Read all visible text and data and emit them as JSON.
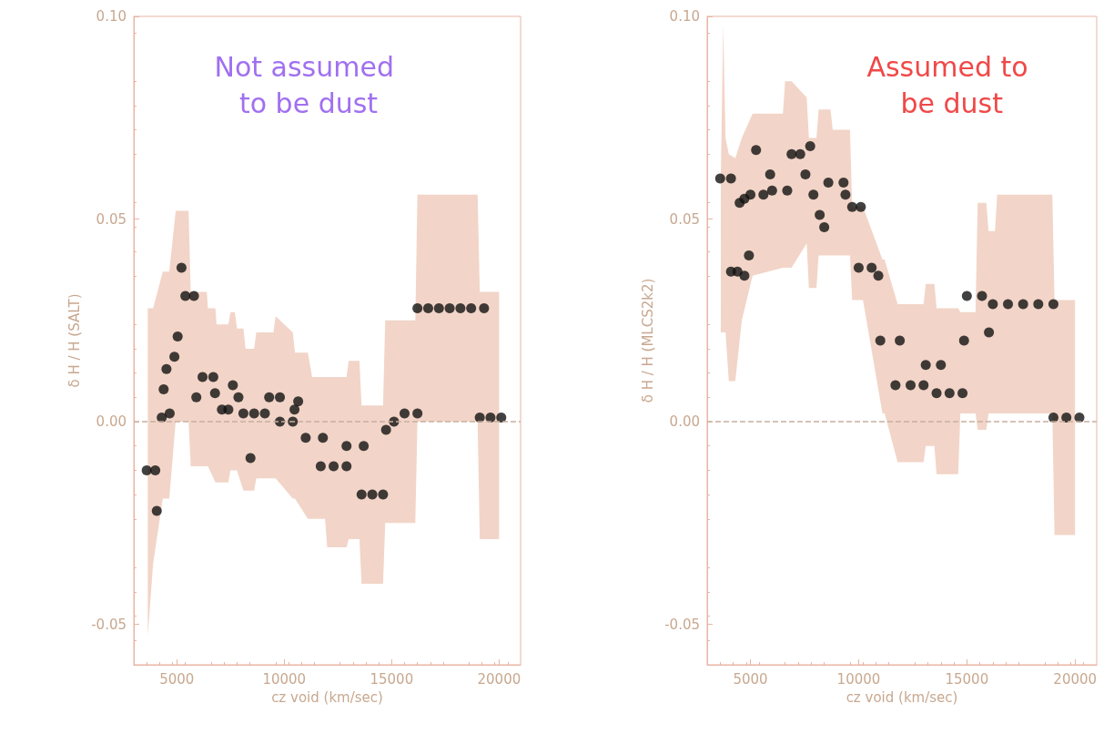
{
  "chart_data": [
    {
      "type": "scatter",
      "title": "Not assumed to be dust",
      "xlabel": "cz void (km/sec)",
      "ylabel": "δ H / H (SALT)",
      "xlim": [
        3000,
        21000
      ],
      "xticks": [
        5000,
        10000,
        15000,
        20000
      ],
      "ylim": [
        -0.06,
        0.1
      ],
      "yticks": [
        {
          "value": -0.05,
          "label": "-0.05"
        },
        {
          "value": 0,
          "label": "0.00"
        },
        {
          "value": 0.05,
          "label": "0.05"
        },
        {
          "value": 0.1,
          "label": "0.10"
        }
      ],
      "grid": false,
      "marker": "circle",
      "ref_lines": [
        {
          "axis": "y",
          "value": 0,
          "line_style": "dashed",
          "color": "#c8b0a0"
        }
      ],
      "series": [
        {
          "type": "area",
          "color": "#f2d5c8",
          "values": [
            null,
            null,
            null,
            null,
            null,
            null,
            null,
            null,
            null,
            null,
            null,
            null,
            null,
            null,
            null,
            null,
            null,
            null,
            null,
            null,
            null,
            null,
            null,
            null,
            null,
            null,
            null,
            null,
            null,
            null,
            null,
            null,
            null,
            null,
            null,
            null,
            null,
            null
          ],
          "x": [
            3650,
            3900,
            4350,
            4650,
            4950,
            5550,
            5650,
            6400,
            6450,
            6800,
            6850,
            7400,
            7500,
            7700,
            7800,
            8100,
            8200,
            8600,
            8700,
            9500,
            9600,
            10400,
            10500,
            11100,
            11300,
            11900,
            12000,
            12900,
            13000,
            13500,
            13600,
            14600,
            14700,
            16100,
            16200,
            19000,
            19100,
            20000
          ],
          "upper": [
            0.028,
            0.028,
            0.037,
            0.037,
            0.052,
            0.052,
            0.032,
            0.032,
            0.028,
            0.028,
            0.024,
            0.024,
            0.027,
            0.027,
            0.023,
            0.023,
            0.018,
            0.018,
            0.022,
            0.022,
            0.026,
            0.022,
            0.017,
            0.017,
            0.011,
            0.011,
            0.011,
            0.011,
            0.015,
            0.015,
            0.004,
            0.004,
            0.025,
            0.025,
            0.056,
            0.056,
            0.032,
            0.032
          ],
          "lower": [
            -0.053,
            -0.035,
            -0.019,
            -0.019,
            0.0,
            0.0,
            -0.011,
            -0.011,
            -0.011,
            -0.015,
            -0.015,
            -0.015,
            -0.012,
            -0.012,
            -0.012,
            -0.017,
            -0.017,
            -0.017,
            -0.014,
            -0.014,
            -0.014,
            -0.019,
            -0.019,
            -0.024,
            -0.024,
            -0.024,
            -0.031,
            -0.031,
            -0.029,
            -0.029,
            -0.04,
            -0.04,
            -0.025,
            -0.025,
            0.0,
            0.0,
            -0.029,
            -0.029
          ]
        },
        {
          "color": "#111111",
          "x": [
            3600,
            4000,
            4070,
            4300,
            4390,
            4520,
            4670,
            4890,
            5040,
            5220,
            5400,
            5800,
            5910,
            6200,
            6700,
            6780,
            7100,
            7400,
            7610,
            7870,
            8100,
            8600,
            9100,
            8430,
            9300,
            9800,
            9800,
            10400,
            10650,
            10480,
            11000,
            11800,
            11700,
            12300,
            12900,
            12900,
            13700,
            13600,
            14100,
            14600,
            14740,
            15110,
            15600,
            16200,
            16200,
            16700,
            17200,
            17700,
            18200,
            18700,
            19300,
            19100,
            19600,
            20100
          ],
          "values": [
            -0.012,
            -0.012,
            -0.022,
            0.001,
            0.008,
            0.013,
            0.002,
            0.016,
            0.021,
            0.038,
            0.031,
            0.031,
            0.006,
            0.011,
            0.011,
            0.007,
            0.003,
            0.003,
            0.009,
            0.006,
            0.002,
            0.002,
            0.002,
            -0.009,
            0.006,
            0.006,
            0.0,
            0.0,
            0.005,
            0.003,
            -0.004,
            -0.004,
            -0.011,
            -0.011,
            -0.011,
            -0.006,
            -0.006,
            -0.018,
            -0.018,
            -0.018,
            -0.002,
            0.0,
            0.002,
            0.002,
            0.028,
            0.028,
            0.028,
            0.028,
            0.028,
            0.028,
            0.028,
            0.001,
            0.001,
            0.001
          ]
        }
      ]
    },
    {
      "type": "scatter",
      "title": "Assumed to be dust",
      "xlabel": "cz void (km/sec)",
      "ylabel": "δ H / H (MLCS2k2)",
      "xlim": [
        3000,
        21000
      ],
      "xticks": [
        5000,
        10000,
        15000,
        20000
      ],
      "ylim": [
        -0.06,
        0.1
      ],
      "yticks": [
        {
          "value": -0.05,
          "label": "-0.05"
        },
        {
          "value": 0,
          "label": "0.00"
        },
        {
          "value": 0.05,
          "label": "0.05"
        },
        {
          "value": 0.1,
          "label": "0.10"
        }
      ],
      "grid": false,
      "marker": "circle",
      "ref_lines": [
        {
          "axis": "y",
          "value": 0,
          "line_style": "dashed",
          "color": "#c8b0a0"
        }
      ],
      "series": [
        {
          "type": "area",
          "color": "#f2d5c8",
          "values": [
            null,
            null,
            null,
            null,
            null,
            null,
            null,
            null,
            null,
            null,
            null,
            null,
            null,
            null,
            null,
            null,
            null,
            null,
            null,
            null,
            null,
            null,
            null,
            null,
            null,
            null,
            null,
            null,
            null,
            null,
            null,
            null,
            null,
            null,
            null,
            null,
            null,
            null,
            null
          ],
          "x": [
            3630,
            3740,
            3850,
            4000,
            4300,
            4600,
            5100,
            6500,
            6600,
            6900,
            7600,
            7700,
            8050,
            8150,
            8700,
            8800,
            9600,
            9700,
            10100,
            10200,
            11100,
            11200,
            11800,
            11900,
            13000,
            13100,
            13500,
            13600,
            14600,
            14700,
            15400,
            15500,
            15900,
            16000,
            16300,
            16400,
            18950,
            19050,
            20000
          ],
          "upper": [
            0.06,
            0.098,
            0.07,
            0.066,
            0.065,
            0.07,
            0.076,
            0.076,
            0.084,
            0.084,
            0.08,
            0.07,
            0.07,
            0.077,
            0.077,
            0.072,
            0.072,
            0.053,
            0.053,
            0.053,
            0.04,
            0.04,
            0.029,
            0.029,
            0.029,
            0.034,
            0.034,
            0.028,
            0.028,
            0.027,
            0.027,
            0.054,
            0.054,
            0.047,
            0.047,
            0.056,
            0.056,
            0.03,
            0.03
          ],
          "lower": [
            0.022,
            0.022,
            0.022,
            0.01,
            0.01,
            0.025,
            0.036,
            0.038,
            0.038,
            0.038,
            0.044,
            0.033,
            0.033,
            0.041,
            0.041,
            0.041,
            0.041,
            0.03,
            0.03,
            0.03,
            0.002,
            0.002,
            -0.01,
            -0.01,
            -0.01,
            -0.006,
            -0.006,
            -0.013,
            -0.013,
            0.002,
            0.002,
            -0.002,
            -0.002,
            0.002,
            0.002,
            0.002,
            0.002,
            -0.028,
            -0.028
          ]
        },
        {
          "color": "#111111",
          "x": [
            3600,
            4100,
            4100,
            4400,
            4930,
            4720,
            4500,
            4720,
            5260,
            5000,
            5600,
            5910,
            6000,
            6700,
            6900,
            7300,
            7760,
            7540,
            7910,
            8200,
            8410,
            8600,
            9300,
            9390,
            9700,
            10100,
            10000,
            10600,
            10910,
            11000,
            11900,
            11700,
            12400,
            13000,
            13100,
            13800,
            13600,
            14200,
            14800,
            14870,
            15000,
            15700,
            16020,
            16200,
            16900,
            17600,
            18300,
            19000,
            19000,
            19600,
            20200
          ],
          "values": [
            0.06,
            0.06,
            0.037,
            0.037,
            0.041,
            0.036,
            0.054,
            0.055,
            0.067,
            0.056,
            0.056,
            0.061,
            0.057,
            0.057,
            0.066,
            0.066,
            0.068,
            0.061,
            0.056,
            0.051,
            0.048,
            0.059,
            0.059,
            0.056,
            0.053,
            0.053,
            0.038,
            0.038,
            0.036,
            0.02,
            0.02,
            0.009,
            0.009,
            0.009,
            0.014,
            0.014,
            0.007,
            0.007,
            0.007,
            0.02,
            0.031,
            0.031,
            0.022,
            0.029,
            0.029,
            0.029,
            0.029,
            0.029,
            0.001,
            0.001,
            0.001
          ]
        }
      ]
    }
  ]
}
